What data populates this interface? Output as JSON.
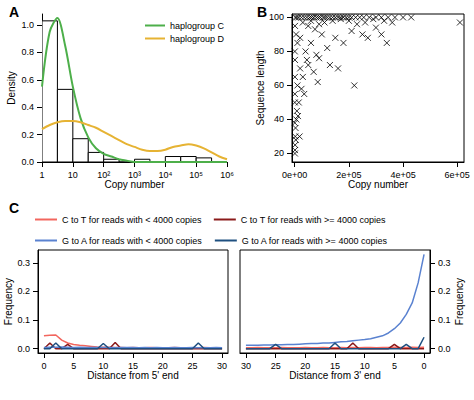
{
  "chart_data": [
    {
      "type": "histogram",
      "title": "A",
      "xlabel": "Copy number",
      "ylabel": "Density",
      "log": "x",
      "bins": [
        1,
        3.162,
        10,
        31.62,
        100,
        316.2,
        1000,
        3162,
        10000,
        31620,
        100000,
        316200,
        1000000
      ],
      "counts": [
        1.03,
        0.53,
        0.17,
        0.07,
        0.02,
        0,
        0.02,
        0,
        0.04,
        0.04,
        0.03,
        0
      ],
      "xlim": [
        1,
        1000000
      ],
      "xticks": [
        1,
        10,
        {
          "value": 100,
          "label": "10²"
        },
        {
          "value": 1000,
          "label": "10³"
        },
        {
          "value": 10000,
          "label": "10⁴"
        },
        {
          "value": 100000,
          "label": "10⁵"
        },
        {
          "value": 1000000,
          "label": "10⁶"
        }
      ],
      "ylim": [
        0,
        1.08
      ],
      "yticks": [
        {
          "value": 0,
          "label": "0.0"
        },
        0.2,
        0.4,
        0.6,
        0.8,
        {
          "value": 1,
          "label": "1.0"
        }
      ],
      "legend": "top-right",
      "x": [
        1,
        1.778,
        3.162,
        5.623,
        10,
        17.78,
        31.62,
        56.23,
        100,
        177.8,
        316.2,
        562.3,
        1000,
        1778,
        3162,
        5623,
        10000,
        17780,
        31620,
        56230,
        100000,
        177800,
        316200,
        562300,
        1000000
      ],
      "series": [
        {
          "name": "haplogroup C",
          "color": "#4DAF4A",
          "type": "line",
          "values": [
            0.55,
            0.95,
            1.05,
            0.85,
            0.55,
            0.32,
            0.18,
            0.1,
            0.06,
            0.04,
            0.02,
            0.01,
            0,
            0,
            0,
            0,
            0,
            0,
            0,
            0,
            0,
            0,
            0,
            0,
            0
          ]
        },
        {
          "name": "haplogroup D",
          "color": "#E6B333",
          "type": "line",
          "values": [
            0.24,
            0.27,
            0.29,
            0.3,
            0.3,
            0.29,
            0.27,
            0.25,
            0.22,
            0.19,
            0.16,
            0.13,
            0.11,
            0.09,
            0.08,
            0.08,
            0.09,
            0.11,
            0.12,
            0.13,
            0.12,
            0.1,
            0.07,
            0.04,
            0.02
          ]
        }
      ]
    },
    {
      "type": "scatter",
      "title": "B",
      "xlabel": "Copy number",
      "ylabel": "Sequence length",
      "marker": "x",
      "color": "#000000",
      "xlim": [
        -10000,
        625000
      ],
      "xticks": [
        {
          "value": 0,
          "label": "0e+00"
        },
        {
          "value": 200000,
          "label": "2e+05"
        },
        {
          "value": 400000,
          "label": "4e+05"
        },
        {
          "value": 600000,
          "label": "6e+05"
        }
      ],
      "ylim": [
        15,
        102
      ],
      "yticks": [
        20,
        40,
        60,
        80,
        100
      ],
      "points": [
        [
          2000,
          100
        ],
        [
          8000,
          100
        ],
        [
          15000,
          100
        ],
        [
          25000,
          100
        ],
        [
          35000,
          100
        ],
        [
          45000,
          100
        ],
        [
          55000,
          100
        ],
        [
          62000,
          100
        ],
        [
          70000,
          100
        ],
        [
          80000,
          100
        ],
        [
          88000,
          100
        ],
        [
          95000,
          100
        ],
        [
          105000,
          100
        ],
        [
          112000,
          100
        ],
        [
          120000,
          100
        ],
        [
          130000,
          100
        ],
        [
          140000,
          100
        ],
        [
          150000,
          100
        ],
        [
          160000,
          100
        ],
        [
          170000,
          100
        ],
        [
          180000,
          100
        ],
        [
          190000,
          100
        ],
        [
          200000,
          100
        ],
        [
          210000,
          100
        ],
        [
          225000,
          100
        ],
        [
          240000,
          100
        ],
        [
          255000,
          100
        ],
        [
          275000,
          100
        ],
        [
          300000,
          100
        ],
        [
          320000,
          100
        ],
        [
          345000,
          100
        ],
        [
          370000,
          100
        ],
        [
          400000,
          100
        ],
        [
          430000,
          100
        ],
        [
          30000,
          97
        ],
        [
          60000,
          98
        ],
        [
          90000,
          96
        ],
        [
          110000,
          97
        ],
        [
          140000,
          98
        ],
        [
          170000,
          99
        ],
        [
          200000,
          98
        ],
        [
          230000,
          96
        ],
        [
          260000,
          97
        ],
        [
          290000,
          99
        ],
        [
          330000,
          98
        ],
        [
          610000,
          97
        ],
        [
          50000,
          95
        ],
        [
          75000,
          93
        ],
        [
          5000,
          90
        ],
        [
          10000,
          85
        ],
        [
          20000,
          88
        ],
        [
          40000,
          80
        ],
        [
          45000,
          75
        ],
        [
          60000,
          85
        ],
        [
          80000,
          78
        ],
        [
          100000,
          90
        ],
        [
          120000,
          82
        ],
        [
          150000,
          88
        ],
        [
          180000,
          85
        ],
        [
          210000,
          92
        ],
        [
          250000,
          90
        ],
        [
          270000,
          88
        ],
        [
          300000,
          94
        ],
        [
          340000,
          85
        ],
        [
          360000,
          97
        ],
        [
          20000,
          70
        ],
        [
          30000,
          65
        ],
        [
          10000,
          60
        ],
        [
          50000,
          72
        ],
        [
          70000,
          68
        ],
        [
          90000,
          76
        ],
        [
          130000,
          72
        ],
        [
          160000,
          70
        ],
        [
          35000,
          55
        ],
        [
          15000,
          50
        ],
        [
          25000,
          58
        ],
        [
          8000,
          45
        ],
        [
          6000,
          40
        ],
        [
          3000,
          35
        ],
        [
          12000,
          42
        ],
        [
          2000,
          30
        ],
        [
          1500,
          25
        ],
        [
          1000,
          22
        ],
        [
          800,
          20
        ],
        [
          4000,
          28
        ],
        [
          600,
          55
        ],
        [
          700,
          65
        ],
        [
          900,
          75
        ],
        [
          500,
          80
        ],
        [
          1000,
          95
        ],
        [
          400,
          50
        ],
        [
          300,
          38
        ],
        [
          18000,
          30
        ],
        [
          220000,
          60
        ],
        [
          320000,
          90
        ],
        [
          85000,
          62
        ]
      ]
    },
    {
      "type": "line",
      "title": "C",
      "legend": "top",
      "ylim": [
        -0.015,
        0.345
      ],
      "yticks": [
        {
          "value": 0,
          "label": "0.0"
        },
        0.1,
        0.2,
        0.3
      ],
      "panels": [
        {
          "xlabel": "Distance from 5' end",
          "ylabel": "Frequency",
          "xlim": [
            -1,
            31
          ],
          "xticks": [
            0,
            5,
            10,
            15,
            20,
            25,
            30
          ],
          "x": [
            0,
            1,
            2,
            3,
            4,
            5,
            6,
            7,
            8,
            9,
            10,
            11,
            12,
            13,
            14,
            15,
            16,
            17,
            18,
            19,
            20,
            21,
            22,
            23,
            24,
            25,
            26,
            27,
            28,
            29,
            30
          ],
          "series": [
            {
              "name": "C to T for reads with < 4000 copies",
              "color": "#F2665E",
              "values": [
                0.045,
                0.047,
                0.048,
                0.03,
                0.02,
                0.015,
                0.012,
                0.01,
                0.008,
                0.006,
                0.005,
                0.005,
                0.004,
                0.004,
                0.003,
                0.004,
                0.003,
                0.003,
                0.004,
                0.003,
                0.003,
                0.003,
                0.004,
                0.003,
                0.003,
                0.003,
                0.003,
                0.004,
                0.003,
                0.003,
                0.003
              ]
            },
            {
              "name": "C to T for reads with >= 4000 copies",
              "color": "#8B1A1A",
              "values": [
                0,
                0.02,
                0,
                0,
                0.015,
                0,
                0,
                0,
                0,
                0,
                0,
                0,
                0.022,
                0,
                0,
                0,
                0,
                0,
                0,
                0,
                0,
                0,
                0,
                0,
                0,
                0,
                0,
                0,
                0,
                0,
                0
              ]
            },
            {
              "name": "G to A for reads with < 4000 copies",
              "color": "#5A82D0",
              "values": [
                0.004,
                0.005,
                0.005,
                0.006,
                0.005,
                0.004,
                0.005,
                0.004,
                0.004,
                0.004,
                0.004,
                0.004,
                0.003,
                0.004,
                0.004,
                0.004,
                0.003,
                0.004,
                0.003,
                0.004,
                0.003,
                0.003,
                0.004,
                0.003,
                0.003,
                0.004,
                0.003,
                0.003,
                0.003,
                0.004,
                0.003
              ]
            },
            {
              "name": "G to A for reads with >= 4000 copies",
              "color": "#1F5080",
              "values": [
                0,
                0,
                0.02,
                0,
                0,
                0,
                0,
                0,
                0,
                0,
                0.018,
                0,
                0,
                0,
                0,
                0,
                0,
                0,
                0,
                0,
                0,
                0,
                0,
                0,
                0,
                0,
                0.02,
                0,
                0,
                0,
                0
              ]
            }
          ]
        },
        {
          "xlabel": "Distance from 3' end",
          "ylabel": "Frequency",
          "xlim": [
            31,
            -1
          ],
          "xticks": [
            0,
            5,
            10,
            15,
            20,
            25,
            30
          ],
          "x": [
            0,
            1,
            2,
            3,
            4,
            5,
            6,
            7,
            8,
            9,
            10,
            11,
            12,
            13,
            14,
            15,
            16,
            17,
            18,
            19,
            20,
            21,
            22,
            23,
            24,
            25,
            26,
            27,
            28,
            29,
            30
          ],
          "series": [
            {
              "name": "C to T for reads with < 4000 copies",
              "color": "#F2665E",
              "values": [
                0.005,
                0.004,
                0.005,
                0.004,
                0.004,
                0.005,
                0.004,
                0.004,
                0.003,
                0.004,
                0.004,
                0.003,
                0.004,
                0.003,
                0.004,
                0.003,
                0.003,
                0.004,
                0.003,
                0.003,
                0.004,
                0.003,
                0.003,
                0.003,
                0.004,
                0.003,
                0.003,
                0.003,
                0.004,
                0.003,
                0.003
              ]
            },
            {
              "name": "C to T for reads with >= 4000 copies",
              "color": "#8B1A1A",
              "values": [
                0,
                0,
                0,
                0,
                0,
                0.015,
                0,
                0,
                0,
                0,
                0,
                0,
                0.02,
                0,
                0,
                0,
                0,
                0,
                0,
                0,
                0,
                0,
                0,
                0,
                0,
                0,
                0,
                0,
                0,
                0,
                0
              ]
            },
            {
              "name": "G to A for reads with < 4000 copies",
              "color": "#5A82D0",
              "values": [
                0.33,
                0.23,
                0.16,
                0.12,
                0.09,
                0.07,
                0.055,
                0.045,
                0.04,
                0.035,
                0.032,
                0.03,
                0.028,
                0.025,
                0.024,
                0.022,
                0.02,
                0.02,
                0.018,
                0.018,
                0.017,
                0.016,
                0.015,
                0.015,
                0.014,
                0.014,
                0.013,
                0.013,
                0.012,
                0.012,
                0.012
              ]
            },
            {
              "name": "G to A for reads with >= 4000 copies",
              "color": "#1F5080",
              "values": [
                0.04,
                0,
                0,
                0.015,
                0,
                0,
                0,
                0,
                0,
                0,
                0,
                0,
                0,
                0,
                0,
                0.02,
                0,
                0,
                0,
                0,
                0,
                0,
                0,
                0,
                0,
                0.015,
                0,
                0,
                0,
                0,
                0
              ]
            }
          ]
        }
      ]
    }
  ]
}
